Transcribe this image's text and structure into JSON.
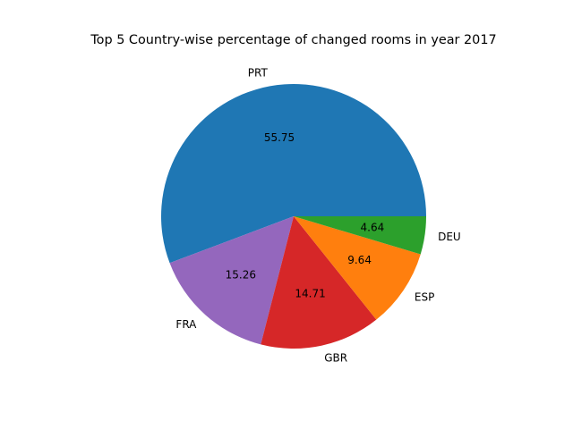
{
  "chart_data": {
    "type": "pie",
    "title": "Top 5 Country-wise percentage of changed rooms in year 2017",
    "labels": [
      "PRT",
      "FRA",
      "GBR",
      "ESP",
      "DEU"
    ],
    "values": [
      55.75,
      15.26,
      14.71,
      9.64,
      4.64
    ],
    "value_labels": [
      "55.75",
      "15.26",
      "14.71",
      "9.64",
      "4.64"
    ],
    "colors": [
      "#1f77b4",
      "#9467bd",
      "#d62728",
      "#ff7f0e",
      "#2ca02c"
    ],
    "start_angle": 0,
    "direction": "counterclockwise",
    "legend": "none"
  }
}
